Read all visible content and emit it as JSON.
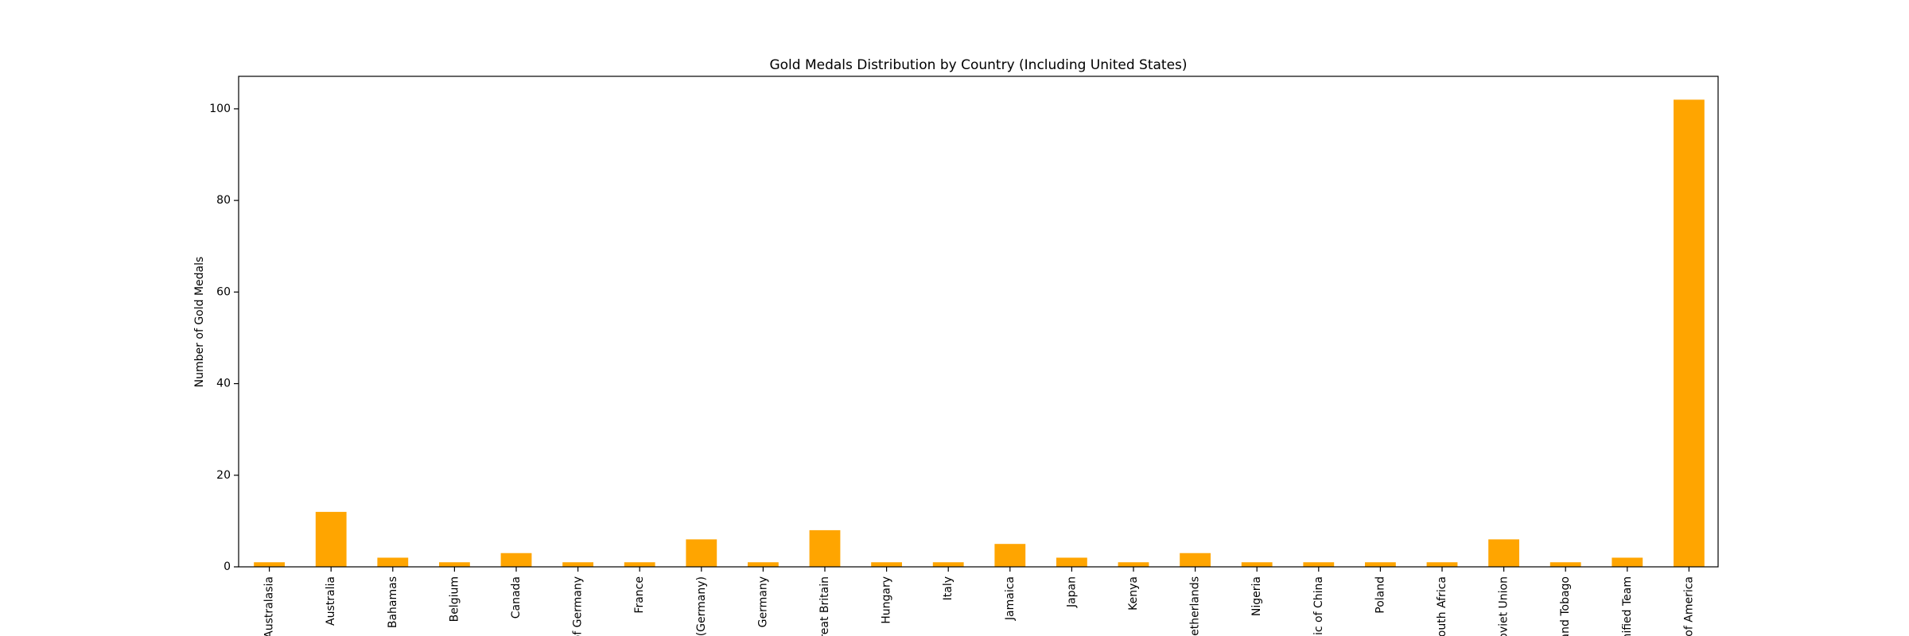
{
  "chart_data": {
    "type": "bar",
    "title": "Gold Medals Distribution by Country (Including United States)",
    "xlabel": "",
    "ylabel": "Number of Gold Medals",
    "categories": [
      "Australasia",
      "Australia",
      "Bahamas",
      "Belgium",
      "Canada",
      "of Germany",
      "France",
      "(Germany)",
      "Germany",
      "reat Britain",
      "Hungary",
      "Italy",
      "Jamaica",
      "Japan",
      "Kenya",
      "letherlands",
      "Nigeria",
      "lic of China",
      "Poland",
      "outh Africa",
      "oviet Union",
      "and Tobago",
      "nified Team",
      "of America"
    ],
    "values": [
      1,
      12,
      2,
      1,
      3,
      1,
      1,
      6,
      1,
      8,
      1,
      1,
      5,
      2,
      1,
      3,
      1,
      1,
      1,
      1,
      6,
      1,
      2,
      102
    ],
    "ylim": [
      0,
      107.1
    ],
    "yticks": [
      0,
      20,
      40,
      60,
      80,
      100
    ],
    "grid": false,
    "legend": "none",
    "bar_color": "#ffa500"
  }
}
